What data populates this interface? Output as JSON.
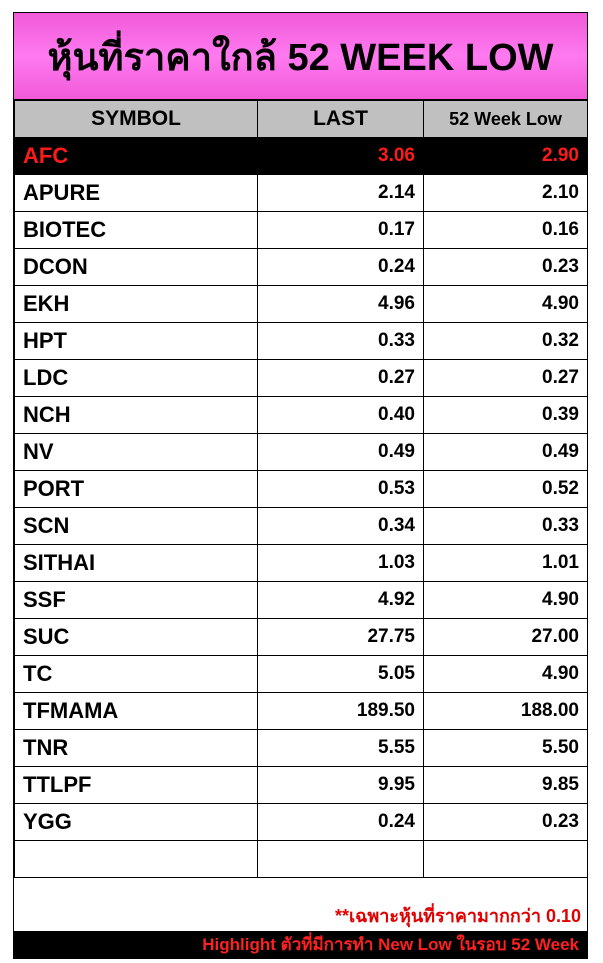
{
  "header": {
    "title": "หุ้นที่ราคาใกล้ 52 WEEK LOW"
  },
  "table": {
    "columns": [
      "SYMBOL",
      "LAST",
      "52 Week Low"
    ],
    "rows": [
      [
        "AFC",
        "3.06",
        "2.90"
      ],
      [
        "APURE",
        "2.14",
        "2.10"
      ],
      [
        "BIOTEC",
        "0.17",
        "0.16"
      ],
      [
        "DCON",
        "0.24",
        "0.23"
      ],
      [
        "EKH",
        "4.96",
        "4.90"
      ],
      [
        "HPT",
        "0.33",
        "0.32"
      ],
      [
        "LDC",
        "0.27",
        "0.27"
      ],
      [
        "NCH",
        "0.40",
        "0.39"
      ],
      [
        "NV",
        "0.49",
        "0.49"
      ],
      [
        "PORT",
        "0.53",
        "0.52"
      ],
      [
        "SCN",
        "0.34",
        "0.33"
      ],
      [
        "SITHAI",
        "1.03",
        "1.01"
      ],
      [
        "SSF",
        "4.92",
        "4.90"
      ],
      [
        "SUC",
        "27.75",
        "27.00"
      ],
      [
        "TC",
        "5.05",
        "4.90"
      ],
      [
        "TFMAMA",
        "189.50",
        "188.00"
      ],
      [
        "TNR",
        "5.55",
        "5.50"
      ],
      [
        "TTLPF",
        "9.95",
        "9.85"
      ],
      [
        "YGG",
        "0.24",
        "0.23"
      ]
    ]
  },
  "footer": {
    "note": "**เฉพาะหุ้นที่ราคามากกว่า 0.10",
    "highlight_note": "Highlight ตัวที่มีการทำ New Low ในรอบ 52 Week"
  }
}
